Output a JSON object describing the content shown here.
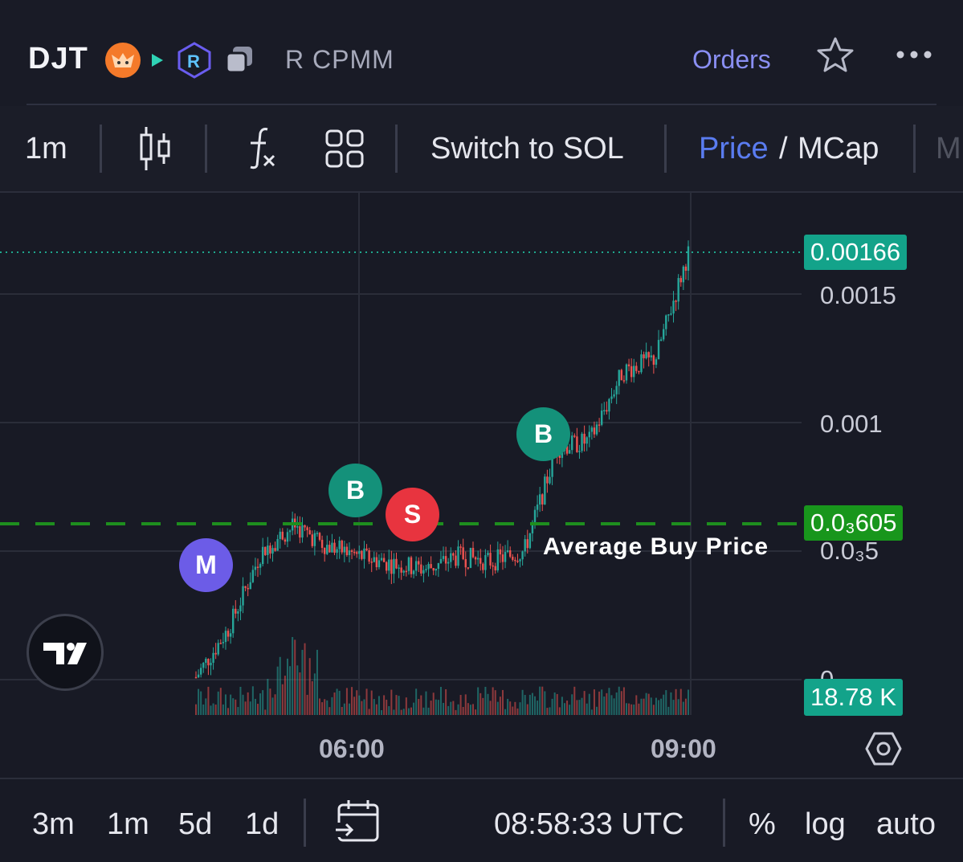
{
  "header": {
    "ticker": "DJT",
    "pair_label": "R CPMM",
    "orders_label": "Orders",
    "icons": [
      "fox-token-icon",
      "arrow-icon",
      "raydium-icon",
      "copy-icon",
      "star-icon",
      "more-icon"
    ]
  },
  "toolbar": {
    "interval": "1m",
    "switch_label": "Switch to SOL",
    "price_label": "Price",
    "slash": "/",
    "mcap_label": "MCap",
    "clipped_label": "M"
  },
  "chart": {
    "current_price": "0.00166",
    "tick_0015": "0.0015",
    "tick_001": "0.001",
    "avg_price_tag": "0.0₃605",
    "tick_0005": "0.0₃5",
    "tick_zero": "0",
    "volume_tag": "18.78 K",
    "avg_label": "Average Buy Price",
    "time_1": "06:00",
    "time_2": "09:00",
    "markers": {
      "m": "M",
      "b1": "B",
      "s": "S",
      "b2": "B"
    },
    "colors": {
      "up": "#26a69a",
      "down": "#ef5350",
      "avg_line": "#1e8e1e",
      "last_price": "#13a38a",
      "marker_m": "#6c5ce7",
      "marker_b": "#14917a",
      "marker_s": "#e8343f"
    }
  },
  "chart_data": {
    "type": "candlestick",
    "x_ticks": [
      "06:00",
      "09:00"
    ],
    "y_ticks": [
      "0.0₃5",
      "0.001",
      "0.0015"
    ],
    "ylim": [
      0,
      0.0017
    ],
    "last_price": 0.00166,
    "average_buy_price": 0.000605,
    "close_trend": [
      1e-05,
      0.0002,
      0.0005,
      0.0006,
      0.00052,
      0.00048,
      0.00045,
      0.00043,
      0.00048,
      0.00046,
      0.0005,
      0.0009,
      0.00093,
      0.0012,
      0.00125,
      0.00166
    ]
  },
  "footer": {
    "ranges": [
      "3m",
      "1m",
      "5d",
      "1d"
    ],
    "time_readout": "08:58:33 UTC",
    "percent": "%",
    "log": "log",
    "auto": "auto"
  }
}
